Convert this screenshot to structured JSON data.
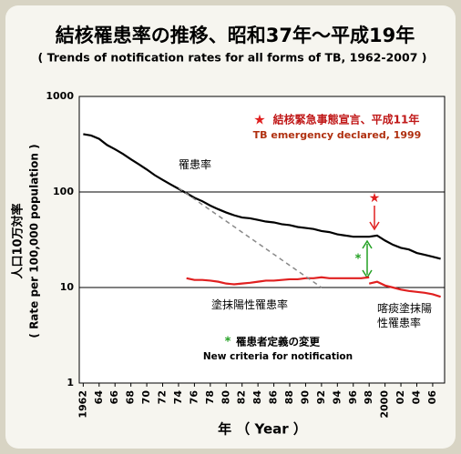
{
  "chart_data": {
    "type": "line",
    "title": "結核罹患率の推移、昭和37年～平成19年",
    "subtitle": "( Trends of notification rates for all forms of TB, 1962-2007 )",
    "y_label": "人口10万対率",
    "y_label_en": "( Rate per 100,000 population )",
    "x_label": "年 （ Year ）",
    "log_y": true,
    "grid": true,
    "xlim": [
      1961.5,
      2007.5
    ],
    "ylim": [
      1,
      1000
    ],
    "yticks": [
      1,
      10,
      100,
      1000
    ],
    "xticks": [
      1962,
      {
        "value": 1964,
        "label": "64"
      },
      {
        "value": 1966,
        "label": "66"
      },
      {
        "value": 1968,
        "label": "68"
      },
      {
        "value": 1970,
        "label": "70"
      },
      {
        "value": 1972,
        "label": "72"
      },
      {
        "value": 1974,
        "label": "74"
      },
      {
        "value": 1976,
        "label": "76"
      },
      {
        "value": 1978,
        "label": "78"
      },
      {
        "value": 1980,
        "label": "80"
      },
      {
        "value": 1982,
        "label": "82"
      },
      {
        "value": 1984,
        "label": "84"
      },
      {
        "value": 1986,
        "label": "86"
      },
      {
        "value": 1988,
        "label": "88"
      },
      {
        "value": 1990,
        "label": "90"
      },
      {
        "value": 1992,
        "label": "92"
      },
      {
        "value": 1994,
        "label": "94"
      },
      {
        "value": 1996,
        "label": "96"
      },
      {
        "value": 1998,
        "label": "98"
      },
      2000,
      {
        "value": 2002,
        "label": "02"
      },
      {
        "value": 2004,
        "label": "04"
      },
      {
        "value": 2006,
        "label": "06"
      }
    ],
    "series": [
      {
        "name": "罹患率",
        "color": "#000000",
        "x": [
          1962,
          1963,
          1964,
          1965,
          1966,
          1967,
          1968,
          1969,
          1970,
          1971,
          1972,
          1973,
          1974,
          1975,
          1976,
          1977,
          1978,
          1979,
          1980,
          1981,
          1982,
          1983,
          1984,
          1985,
          1986,
          1987,
          1988,
          1989,
          1990,
          1991,
          1992,
          1993,
          1994,
          1995,
          1996,
          1997,
          1998,
          1999,
          2000,
          2001,
          2002,
          2003,
          2004,
          2005,
          2006,
          2007
        ],
        "values": [
          403,
          390,
          360,
          310,
          280,
          250,
          220,
          195,
          172,
          150,
          134,
          120,
          108,
          97,
          87,
          80,
          72,
          66,
          61,
          57,
          54,
          53,
          51,
          49,
          48,
          46,
          45,
          43,
          42,
          41,
          39,
          38,
          36,
          35,
          34,
          34,
          34,
          35,
          31,
          28,
          26,
          25,
          23,
          22,
          21,
          20
        ]
      },
      {
        "name": "塗抹陽性罹患率",
        "color": "#e02020",
        "x": [
          1975,
          1976,
          1977,
          1978,
          1979,
          1980,
          1981,
          1982,
          1983,
          1984,
          1985,
          1986,
          1987,
          1988,
          1989,
          1990,
          1991,
          1992,
          1993,
          1994,
          1995,
          1996,
          1997,
          1998
        ],
        "values": [
          12.5,
          12,
          12,
          11.8,
          11.5,
          11,
          10.8,
          11,
          11.2,
          11.5,
          11.8,
          11.8,
          12,
          12.2,
          12.2,
          12.5,
          12.5,
          12.8,
          12.5,
          12.5,
          12.5,
          12.5,
          12.5,
          12.8
        ]
      },
      {
        "name": "喀痰塗抹陽性罹患率",
        "color": "#e02020",
        "x": [
          1998,
          1999,
          2000,
          2001,
          2002,
          2003,
          2004,
          2005,
          2006,
          2007
        ],
        "values": [
          11,
          11.5,
          10.5,
          10,
          9.5,
          9.2,
          9,
          8.8,
          8.5,
          8
        ]
      },
      {
        "color": "#888888",
        "dashed": true,
        "x": [
          1974,
          1992
        ],
        "values": [
          110,
          10
        ]
      }
    ],
    "annotations": {
      "emergency_star": "★",
      "emergency": "結核緊急事態宣言、平成11年",
      "emergency_en": "TB emergency declared, 1999",
      "criteria_mark": "*",
      "criteria": "罹患者定義の変更",
      "criteria_en": "New criteria for notification"
    }
  }
}
